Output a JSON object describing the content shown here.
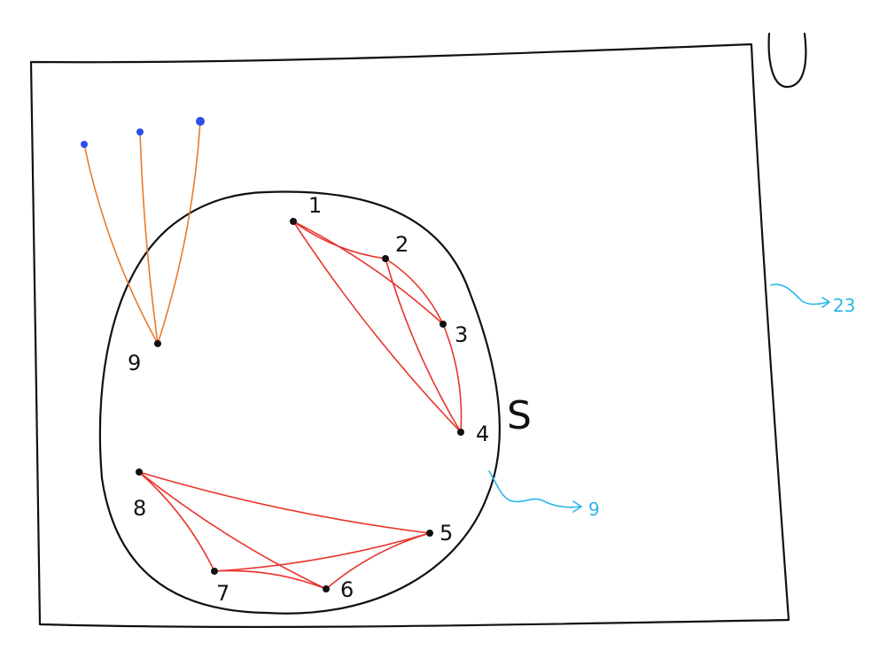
{
  "colors": {
    "ink": "#111111",
    "edge": "#e8332b",
    "external_edge": "#e87a2b",
    "external_node": "#2b4fe8",
    "annotation": "#29b6e8"
  },
  "universe": {
    "label": "U",
    "count_label": "23"
  },
  "subset": {
    "label": "S",
    "count_label": "9"
  },
  "nodes": [
    {
      "id": "1",
      "label": "1"
    },
    {
      "id": "2",
      "label": "2"
    },
    {
      "id": "3",
      "label": "3"
    },
    {
      "id": "4",
      "label": "4"
    },
    {
      "id": "5",
      "label": "5"
    },
    {
      "id": "6",
      "label": "6"
    },
    {
      "id": "7",
      "label": "7"
    },
    {
      "id": "8",
      "label": "8"
    },
    {
      "id": "9",
      "label": "9"
    }
  ],
  "edges": [
    [
      "1",
      "2"
    ],
    [
      "1",
      "3"
    ],
    [
      "1",
      "4"
    ],
    [
      "2",
      "3"
    ],
    [
      "2",
      "4"
    ],
    [
      "3",
      "4"
    ],
    [
      "8",
      "5"
    ],
    [
      "8",
      "7"
    ],
    [
      "8",
      "6"
    ],
    [
      "5",
      "7"
    ],
    [
      "5",
      "6"
    ],
    [
      "7",
      "6"
    ]
  ],
  "external_edges": [
    [
      "e1",
      "9"
    ],
    [
      "e2",
      "9"
    ],
    [
      "e3",
      "9"
    ]
  ]
}
